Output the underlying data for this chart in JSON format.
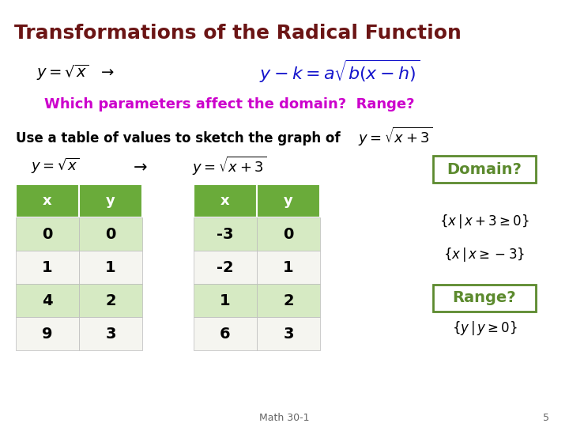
{
  "title": "Transformations of the Radical Function",
  "title_color": "#6B1515",
  "bg_color": "#FFFFFF",
  "magenta_text": "Which parameters affect the domain?  Range?",
  "magenta_color": "#CC00CC",
  "blue_color": "#1414CC",
  "green_header": "#6AAB3A",
  "green_light": "#D6EAC3",
  "green_light2": "#E8F4DC",
  "white_row": "#F5F5F0",
  "table1_x": [
    "0",
    "1",
    "4",
    "9"
  ],
  "table1_y": [
    "0",
    "1",
    "2",
    "3"
  ],
  "table2_x": [
    "-3",
    "-2",
    "1",
    "6"
  ],
  "table2_y": [
    "0",
    "1",
    "2",
    "3"
  ],
  "domain_box_color": "#5C8A2E",
  "footer": "Math 30-1",
  "page_num": "5"
}
